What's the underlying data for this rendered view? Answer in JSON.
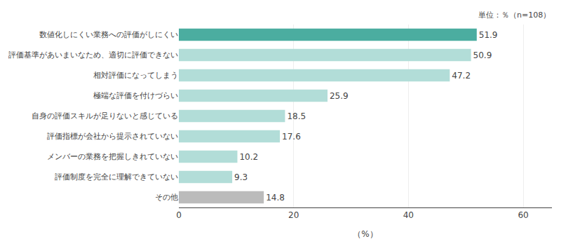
{
  "chart_data": {
    "type": "bar",
    "orientation": "horizontal",
    "categories": [
      "数値化しにくい業務への評価がしにくい",
      "評価基準があいまいなため、適切に評価できない",
      "相対評価になってしまう",
      "極端な評価を付けづらい",
      "自身の評価スキルが足りないと感じている",
      "評価指標が会社から提示されていない",
      "メンバーの業務を把握しきれていない",
      "評価制度を完全に理解できていない",
      "その他"
    ],
    "values": [
      51.9,
      50.9,
      47.2,
      25.9,
      18.5,
      17.6,
      10.2,
      9.3,
      14.8
    ],
    "colors": [
      "#4BADA0",
      "#B2DDD8",
      "#B2DDD8",
      "#B2DDD8",
      "#B2DDD8",
      "#B2DDD8",
      "#B2DDD8",
      "#B2DDD8",
      "#BBBBBB"
    ],
    "xlabel": "（%）",
    "xlim": [
      0,
      65
    ],
    "xticks": [
      0,
      20,
      40,
      60
    ],
    "annotations": [
      "単位：％（n=108）"
    ],
    "grid": true,
    "data_labels": true
  }
}
